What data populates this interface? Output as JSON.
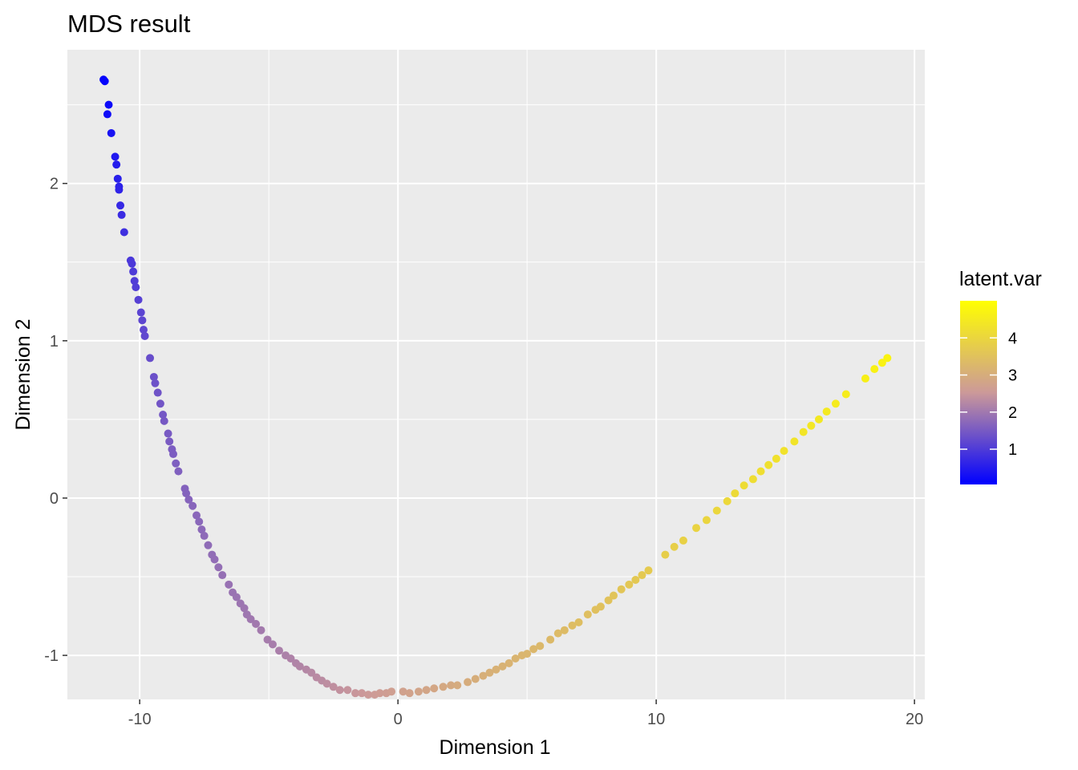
{
  "chart_data": {
    "type": "scatter",
    "title": "MDS result",
    "xlabel": "Dimension 1",
    "ylabel": "Dimension 2",
    "xlim": [
      -12.8,
      20.4
    ],
    "ylim": [
      -1.28,
      2.85
    ],
    "x_ticks": [
      {
        "value": -10,
        "label": "-10"
      },
      {
        "value": 0,
        "label": "0"
      },
      {
        "value": 10,
        "label": "10"
      },
      {
        "value": 20,
        "label": "20"
      }
    ],
    "y_ticks": [
      {
        "value": -1,
        "label": "-1"
      },
      {
        "value": 0,
        "label": "0"
      },
      {
        "value": 1,
        "label": "1"
      },
      {
        "value": 2,
        "label": "2"
      }
    ],
    "grid": true,
    "color_scale": {
      "title": "latent.var",
      "low_color": "#0000ff",
      "mid_color": "#cc9999",
      "high_color": "#ffff00",
      "range": [
        0.05,
        5.0
      ],
      "ticks": [
        {
          "value": 1,
          "label": "1"
        },
        {
          "value": 2,
          "label": "2"
        },
        {
          "value": 3,
          "label": "3"
        },
        {
          "value": 4,
          "label": "4"
        }
      ],
      "legend_position": "right"
    },
    "points": [
      [
        -11.4,
        2.66,
        0.1
      ],
      [
        -11.35,
        2.65,
        0.12
      ],
      [
        -11.2,
        2.5,
        0.2
      ],
      [
        -11.25,
        2.44,
        0.25
      ],
      [
        -11.1,
        2.32,
        0.35
      ],
      [
        -10.95,
        2.17,
        0.45
      ],
      [
        -10.9,
        2.12,
        0.5
      ],
      [
        -10.85,
        2.03,
        0.55
      ],
      [
        -10.8,
        1.98,
        0.6
      ],
      [
        -10.8,
        1.96,
        0.62
      ],
      [
        -10.75,
        1.86,
        0.7
      ],
      [
        -10.7,
        1.8,
        0.75
      ],
      [
        -10.6,
        1.69,
        0.82
      ],
      [
        -10.35,
        1.51,
        0.95
      ],
      [
        -10.3,
        1.49,
        0.97
      ],
      [
        -10.25,
        1.44,
        1.0
      ],
      [
        -10.2,
        1.38,
        1.03
      ],
      [
        -10.15,
        1.34,
        1.05
      ],
      [
        -10.05,
        1.26,
        1.1
      ],
      [
        -9.95,
        1.18,
        1.15
      ],
      [
        -9.9,
        1.13,
        1.18
      ],
      [
        -9.85,
        1.07,
        1.2
      ],
      [
        -9.8,
        1.03,
        1.22
      ],
      [
        -9.6,
        0.89,
        1.3
      ],
      [
        -9.45,
        0.77,
        1.35
      ],
      [
        -9.4,
        0.73,
        1.37
      ],
      [
        -9.3,
        0.67,
        1.4
      ],
      [
        -9.2,
        0.6,
        1.43
      ],
      [
        -9.1,
        0.53,
        1.46
      ],
      [
        -9.05,
        0.49,
        1.48
      ],
      [
        -8.9,
        0.41,
        1.51
      ],
      [
        -8.85,
        0.36,
        1.53
      ],
      [
        -8.75,
        0.31,
        1.55
      ],
      [
        -8.7,
        0.28,
        1.56
      ],
      [
        -8.6,
        0.22,
        1.58
      ],
      [
        -8.5,
        0.17,
        1.6
      ],
      [
        -8.25,
        0.06,
        1.64
      ],
      [
        -8.2,
        0.03,
        1.65
      ],
      [
        -8.1,
        -0.01,
        1.67
      ],
      [
        -7.95,
        -0.05,
        1.69
      ],
      [
        -7.8,
        -0.11,
        1.72
      ],
      [
        -7.7,
        -0.15,
        1.73
      ],
      [
        -7.6,
        -0.2,
        1.75
      ],
      [
        -7.5,
        -0.24,
        1.77
      ],
      [
        -7.35,
        -0.3,
        1.79
      ],
      [
        -7.2,
        -0.36,
        1.81
      ],
      [
        -7.1,
        -0.39,
        1.82
      ],
      [
        -6.95,
        -0.44,
        1.84
      ],
      [
        -6.8,
        -0.49,
        1.86
      ],
      [
        -6.55,
        -0.55,
        1.89
      ],
      [
        -6.4,
        -0.6,
        1.91
      ],
      [
        -6.25,
        -0.63,
        1.92
      ],
      [
        -6.1,
        -0.67,
        1.94
      ],
      [
        -5.95,
        -0.7,
        1.96
      ],
      [
        -5.85,
        -0.74,
        1.97
      ],
      [
        -5.7,
        -0.77,
        1.99
      ],
      [
        -5.5,
        -0.8,
        2.01
      ],
      [
        -5.3,
        -0.84,
        2.03
      ],
      [
        -5.05,
        -0.9,
        2.06
      ],
      [
        -4.85,
        -0.93,
        2.08
      ],
      [
        -4.6,
        -0.97,
        2.11
      ],
      [
        -4.35,
        -1.0,
        2.14
      ],
      [
        -4.15,
        -1.02,
        2.16
      ],
      [
        -3.95,
        -1.05,
        2.18
      ],
      [
        -3.8,
        -1.07,
        2.2
      ],
      [
        -3.55,
        -1.09,
        2.23
      ],
      [
        -3.35,
        -1.11,
        2.26
      ],
      [
        -3.15,
        -1.14,
        2.29
      ],
      [
        -2.95,
        -1.16,
        2.31
      ],
      [
        -2.75,
        -1.18,
        2.34
      ],
      [
        -2.5,
        -1.2,
        2.37
      ],
      [
        -2.25,
        -1.22,
        2.4
      ],
      [
        -1.95,
        -1.22,
        2.44
      ],
      [
        -1.65,
        -1.24,
        2.48
      ],
      [
        -1.4,
        -1.24,
        2.51
      ],
      [
        -1.15,
        -1.25,
        2.54
      ],
      [
        -0.9,
        -1.25,
        2.57
      ],
      [
        -0.7,
        -1.24,
        2.6
      ],
      [
        -0.45,
        -1.24,
        2.63
      ],
      [
        -0.25,
        -1.23,
        2.66
      ],
      [
        0.2,
        -1.23,
        2.72
      ],
      [
        0.45,
        -1.24,
        2.75
      ],
      [
        0.8,
        -1.23,
        2.79
      ],
      [
        1.1,
        -1.22,
        2.82
      ],
      [
        1.4,
        -1.21,
        2.85
      ],
      [
        1.75,
        -1.2,
        2.89
      ],
      [
        2.05,
        -1.19,
        2.92
      ],
      [
        2.3,
        -1.19,
        2.95
      ],
      [
        2.7,
        -1.17,
        2.99
      ],
      [
        3.0,
        -1.15,
        3.02
      ],
      [
        3.3,
        -1.13,
        3.05
      ],
      [
        3.55,
        -1.11,
        3.08
      ],
      [
        3.8,
        -1.09,
        3.1
      ],
      [
        4.05,
        -1.07,
        3.13
      ],
      [
        4.3,
        -1.05,
        3.15
      ],
      [
        4.55,
        -1.02,
        3.18
      ],
      [
        4.8,
        -1.0,
        3.2
      ],
      [
        5.0,
        -0.99,
        3.22
      ],
      [
        5.25,
        -0.96,
        3.25
      ],
      [
        5.5,
        -0.94,
        3.27
      ],
      [
        5.9,
        -0.9,
        3.31
      ],
      [
        6.2,
        -0.86,
        3.34
      ],
      [
        6.45,
        -0.84,
        3.36
      ],
      [
        6.75,
        -0.81,
        3.39
      ],
      [
        7.0,
        -0.79,
        3.42
      ],
      [
        7.35,
        -0.74,
        3.45
      ],
      [
        7.65,
        -0.71,
        3.48
      ],
      [
        7.85,
        -0.69,
        3.5
      ],
      [
        8.15,
        -0.65,
        3.53
      ],
      [
        8.35,
        -0.62,
        3.56
      ],
      [
        8.65,
        -0.58,
        3.6
      ],
      [
        8.95,
        -0.55,
        3.63
      ],
      [
        9.2,
        -0.52,
        3.66
      ],
      [
        9.45,
        -0.49,
        3.69
      ],
      [
        9.7,
        -0.46,
        3.72
      ],
      [
        10.35,
        -0.36,
        3.8
      ],
      [
        10.7,
        -0.31,
        3.84
      ],
      [
        11.05,
        -0.27,
        3.88
      ],
      [
        11.55,
        -0.19,
        3.94
      ],
      [
        11.95,
        -0.14,
        3.98
      ],
      [
        12.35,
        -0.08,
        4.02
      ],
      [
        12.75,
        -0.02,
        4.06
      ],
      [
        13.05,
        0.03,
        4.1
      ],
      [
        13.4,
        0.08,
        4.14
      ],
      [
        13.75,
        0.12,
        4.17
      ],
      [
        14.05,
        0.17,
        4.2
      ],
      [
        14.35,
        0.21,
        4.24
      ],
      [
        14.65,
        0.25,
        4.27
      ],
      [
        14.95,
        0.3,
        4.3
      ],
      [
        15.35,
        0.36,
        4.34
      ],
      [
        15.7,
        0.42,
        4.38
      ],
      [
        16.0,
        0.46,
        4.41
      ],
      [
        16.3,
        0.5,
        4.44
      ],
      [
        16.6,
        0.55,
        4.47
      ],
      [
        16.95,
        0.6,
        4.51
      ],
      [
        17.35,
        0.66,
        4.55
      ],
      [
        18.1,
        0.76,
        4.62
      ],
      [
        18.45,
        0.82,
        4.66
      ],
      [
        18.75,
        0.86,
        4.69
      ],
      [
        18.95,
        0.89,
        4.72
      ]
    ]
  }
}
